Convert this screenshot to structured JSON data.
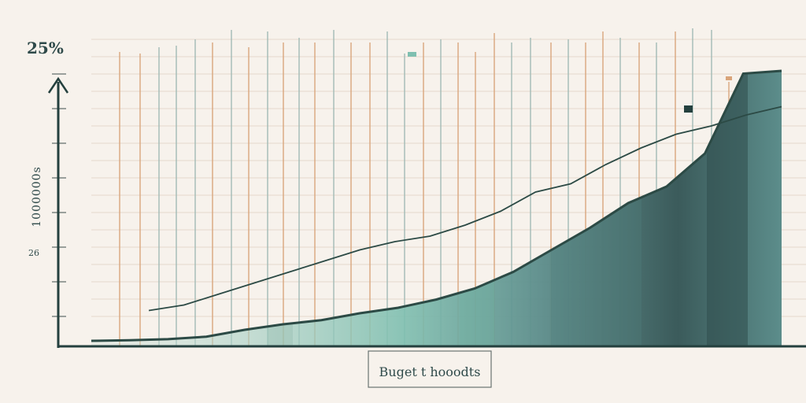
{
  "chart_data": {
    "type": "area",
    "title": "",
    "top_label": "25%",
    "y_axis_label": "1000000s",
    "y_tick_label": "26",
    "x_axis_label": "Buget t hooodts",
    "x": [
      0,
      1,
      2,
      3,
      4,
      5,
      6,
      7,
      8,
      9,
      10,
      11,
      12,
      13,
      14,
      15,
      16,
      17,
      18
    ],
    "series": [
      {
        "values": [
          2,
          2.2,
          2.6,
          3.5,
          6,
          8,
          9.5,
          12,
          14,
          17,
          21,
          27,
          35,
          43,
          52,
          58,
          70,
          99,
          100
        ]
      },
      {
        "values": [
          13,
          15,
          19,
          23,
          27,
          31,
          35,
          38,
          40,
          44,
          49,
          56,
          59,
          66,
          72,
          77,
          80,
          84,
          87
        ]
      }
    ],
    "xlim": [
      0,
      18
    ],
    "ylim": [
      0,
      100
    ],
    "grid": true,
    "colors": {
      "area_main": "#5c8d8b",
      "area_dark": "#3b5b5b",
      "area_light": "#7fbfb0",
      "line_dark": "#2c4a45",
      "axis": "#24403e",
      "grid_h": "#e4d8cc",
      "grid_v_teal": "#9fb9b4",
      "grid_v_orange": "#d9a47a"
    }
  }
}
